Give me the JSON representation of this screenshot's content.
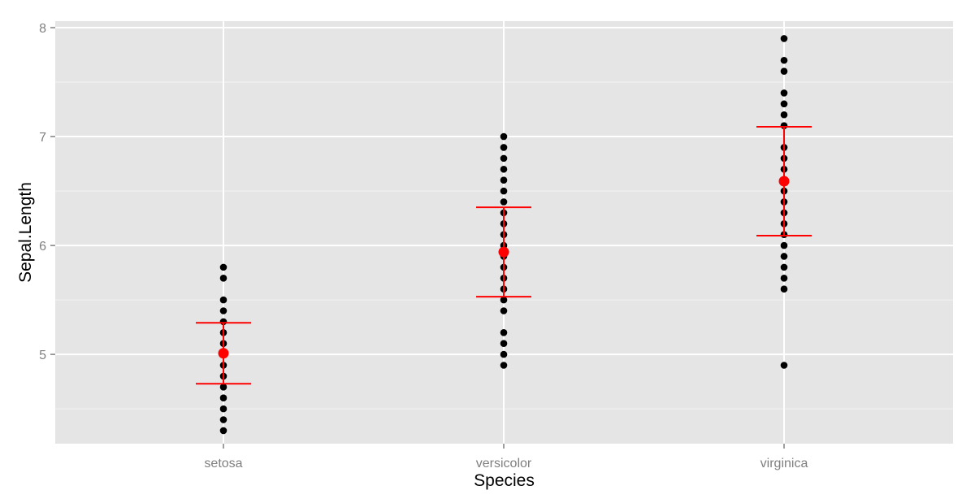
{
  "chart_data": {
    "type": "scatter",
    "xlabel": "Species",
    "ylabel": "Sepal.Length",
    "categories": [
      "setosa",
      "versicolor",
      "virginica"
    ],
    "ylim": [
      4.18,
      8.06
    ],
    "y_ticks": [
      5,
      6,
      7,
      8
    ],
    "y_tick_labels": [
      "5",
      "6",
      "7",
      "8"
    ],
    "grid": true,
    "points": [
      [
        4.3,
        4.4,
        4.5,
        4.6,
        4.7,
        4.8,
        4.9,
        5.0,
        5.1,
        5.2,
        5.3,
        5.4,
        5.5,
        5.7,
        5.8
      ],
      [
        4.9,
        5.0,
        5.1,
        5.2,
        5.4,
        5.5,
        5.6,
        5.7,
        5.8,
        5.9,
        6.0,
        6.1,
        6.2,
        6.3,
        6.4,
        6.5,
        6.6,
        6.7,
        6.8,
        6.9,
        7.0
      ],
      [
        4.9,
        5.6,
        5.7,
        5.8,
        5.9,
        6.0,
        6.1,
        6.2,
        6.3,
        6.4,
        6.5,
        6.7,
        6.8,
        6.9,
        7.1,
        7.2,
        7.3,
        7.4,
        7.6,
        7.7,
        7.9
      ]
    ],
    "summary": [
      {
        "category": "setosa",
        "mean": 5.01,
        "lower": 4.73,
        "upper": 5.29
      },
      {
        "category": "versicolor",
        "mean": 5.94,
        "lower": 5.53,
        "upper": 6.35
      },
      {
        "category": "virginica",
        "mean": 6.59,
        "lower": 6.09,
        "upper": 7.09
      }
    ],
    "colors": {
      "panel": "#e5e5e5",
      "grid_major": "#ffffff",
      "grid_minor": "#f2f2f2",
      "points": "#000000",
      "summary": "#ff0000",
      "tick_text": "#7f7f7f",
      "tick_mark": "#7f7f7f"
    }
  }
}
